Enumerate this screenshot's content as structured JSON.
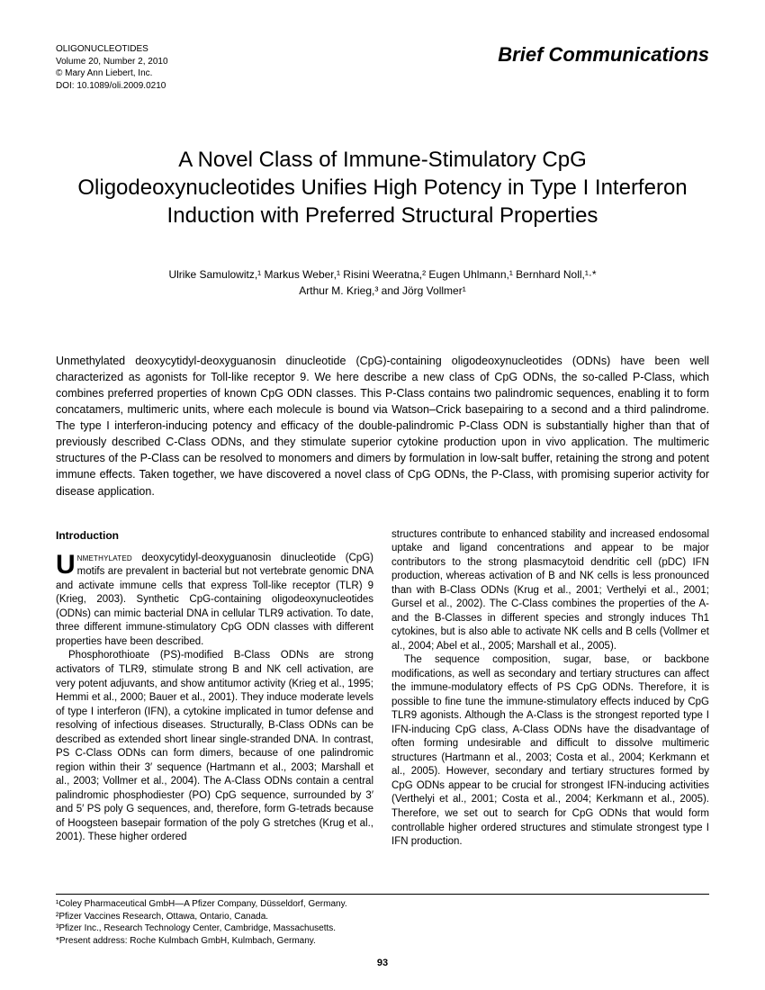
{
  "header": {
    "journal_name": "OLIGONUCLEOTIDES",
    "volume_line": "Volume 20, Number 2, 2010",
    "copyright": "© Mary Ann Liebert, Inc.",
    "doi": "DOI: 10.1089/oli.2009.0210",
    "comm_type": "Brief Communications"
  },
  "title": "A Novel Class of Immune-Stimulatory CpG Oligodeoxynucleotides Unifies High Potency in Type I Interferon Induction with Preferred Structural Properties",
  "authors_line1": "Ulrike Samulowitz,¹ Markus Weber,¹ Risini Weeratna,² Eugen Uhlmann,¹ Bernhard Noll,¹·*",
  "authors_line2": "Arthur M. Krieg,³ and Jörg Vollmer¹",
  "abstract": "Unmethylated deoxycytidyl-deoxyguanosin dinucleotide (CpG)-containing oligodeoxynucleotides (ODNs) have been well characterized as agonists for Toll-like receptor 9. We here describe a new class of CpG ODNs, the so-called P-Class, which combines preferred properties of known CpG ODN classes. This P-Class contains two palindromic sequences, enabling it to form concatamers, multimeric units, where each molecule is bound via Watson–Crick basepairing to a second and a third palindrome. The type I interferon-inducing potency and efficacy of the double-palindromic P-Class ODN is substantially higher than that of previously described C-Class ODNs, and they stimulate superior cytokine production upon in vivo application. The multimeric structures of the P-Class can be resolved to monomers and dimers by formulation in low-salt buffer, retaining the strong and potent immune effects. Taken together, we have discovered a novel class of CpG ODNs, the P-Class, with promising superior activity for disease application.",
  "intro_heading": "Introduction",
  "col1_p1_rest": " deoxycytidyl-deoxyguanosin dinucleotide (CpG) motifs are prevalent in bacterial but not vertebrate genomic DNA and activate immune cells that express Toll-like receptor (TLR) 9 (Krieg, 2003). Synthetic CpG-containing oligodeoxynucleotides (ODNs) can mimic bacterial DNA in cellular TLR9 activation. To date, three different immune-stimulatory CpG ODN classes with different properties have been described.",
  "col1_p2": "Phosphorothioate (PS)-modified B-Class ODNs are strong activators of TLR9, stimulate strong B and NK cell activation, are very potent adjuvants, and show antitumor activity (Krieg et al., 1995; Hemmi et al., 2000; Bauer et al., 2001). They induce moderate levels of type I interferon (IFN), a cytokine implicated in tumor defense and resolving of infectious diseases. Structurally, B-Class ODNs can be described as extended short linear single-stranded DNA. In contrast, PS C-Class ODNs can form dimers, because of one palindromic region within their 3′ sequence (Hartmann et al., 2003; Marshall et al., 2003; Vollmer et al., 2004). The A-Class ODNs contain a central palindromic phosphodiester (PO) CpG sequence, surrounded by 3′ and 5′ PS poly G sequences, and, therefore, form G-tetrads because of Hoogsteen basepair formation of the poly G stretches (Krug et al., 2001). These higher ordered",
  "col2_p1": "structures contribute to enhanced stability and increased endosomal uptake and ligand concentrations and appear to be major contributors to the strong plasmacytoid dendritic cell (pDC) IFN production, whereas activation of B and NK cells is less pronounced than with B-Class ODNs (Krug et al., 2001; Verthelyi et al., 2001; Gursel et al., 2002). The C-Class combines the properties of the A- and the B-Classes in different species and strongly induces Th1 cytokines, but is also able to activate NK cells and B cells (Vollmer et al., 2004; Abel et al., 2005; Marshall et al., 2005).",
  "col2_p2": "The sequence composition, sugar, base, or backbone modifications, as well as secondary and tertiary structures can affect the immune-modulatory effects of PS CpG ODNs. Therefore, it is possible to fine tune the immune-stimulatory effects induced by CpG TLR9 agonists. Although the A-Class is the strongest reported type I IFN-inducing CpG class, A-Class ODNs have the disadvantage of often forming undesirable and difficult to dissolve multimeric structures (Hartmann et al., 2003; Costa et al., 2004; Kerkmann et al., 2005). However, secondary and tertiary structures formed by CpG ODNs appear to be crucial for strongest IFN-inducing activities (Verthelyi et al., 2001; Costa et al., 2004; Kerkmann et al., 2005). Therefore, we set out to search for CpG ODNs that would form controllable higher ordered structures and stimulate strongest type I IFN production.",
  "footnotes": {
    "f1": "¹Coley Pharmaceutical GmbH—A Pfizer Company, Düsseldorf, Germany.",
    "f2": "²Pfizer Vaccines Research, Ottawa, Ontario, Canada.",
    "f3": "³Pfizer Inc., Research Technology Center, Cambridge, Massachusetts.",
    "f4": "*Present address: Roche Kulmbach GmbH, Kulmbach, Germany."
  },
  "page_number": "93"
}
